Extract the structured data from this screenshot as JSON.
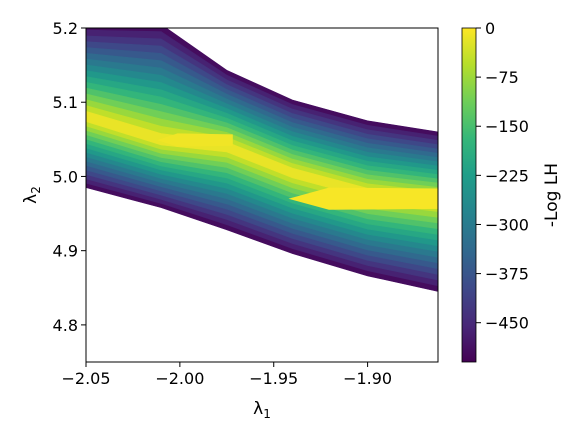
{
  "chart_data": {
    "type": "contour",
    "xlabel": "λ",
    "xlabel_sub": "1",
    "ylabel": "λ",
    "ylabel_sub": "2",
    "xlim": [
      -2.05,
      -1.8625
    ],
    "ylim": [
      4.75,
      5.2
    ],
    "x_ticks": [
      -2.05,
      -2.0,
      -1.95,
      -1.9
    ],
    "x_tick_labels": [
      "−2.05",
      "−2.00",
      "−1.95",
      "−1.90"
    ],
    "y_ticks": [
      4.8,
      4.9,
      5.0,
      5.1,
      5.2
    ],
    "y_tick_labels": [
      "4.8",
      "4.9",
      "5.0",
      "5.1",
      "5.2"
    ],
    "colorbar": {
      "label": "-Log LH",
      "range": [
        -510,
        0
      ],
      "ticks": [
        0,
        -75,
        -150,
        -225,
        -300,
        -375,
        -450
      ],
      "tick_labels": [
        "0",
        "−75",
        "−150",
        "−225",
        "−300",
        "−375",
        "−450"
      ],
      "colormap": "viridis"
    },
    "ridge": {
      "x": [
        -2.05,
        -2.01,
        -1.975,
        -1.94,
        -1.9,
        -1.8625
      ],
      "lower_y": [
        4.985,
        4.958,
        4.928,
        4.896,
        4.866,
        4.845
      ],
      "center_y": [
        5.08,
        5.048,
        5.04,
        5.005,
        4.978,
        4.968
      ],
      "upper_y": [
        5.205,
        5.205,
        5.143,
        5.103,
        5.075,
        5.06
      ]
    },
    "peak_regions": [
      {
        "x": [
          -2.01,
          -1.975
        ],
        "y": [
          5.04,
          5.058
        ],
        "value": -10
      },
      {
        "x": [
          -1.94,
          -1.8625
        ],
        "y": [
          4.955,
          4.985
        ],
        "value": -5
      }
    ]
  },
  "colors": {
    "viridis": [
      "#440154",
      "#482878",
      "#3e4989",
      "#31688e",
      "#26828e",
      "#1f9e89",
      "#35b779",
      "#6ece58",
      "#b5de2b",
      "#fde725"
    ]
  }
}
